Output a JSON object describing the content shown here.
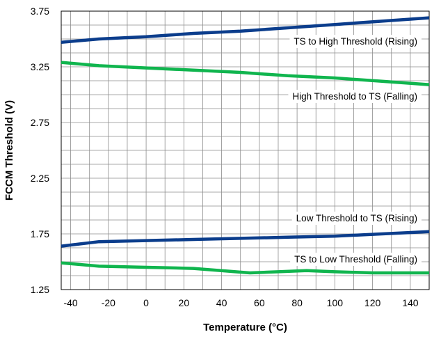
{
  "chart_data": {
    "type": "line",
    "title": "",
    "xlabel": "Temperature (°C)",
    "ylabel": "FCCM Threshold (V)",
    "xlim": [
      -45,
      150
    ],
    "ylim": [
      1.25,
      3.75
    ],
    "x_ticks": [
      -40,
      -20,
      0,
      20,
      40,
      60,
      80,
      100,
      120,
      140
    ],
    "y_ticks": [
      "1.25",
      "1.75",
      "2.25",
      "2.75",
      "3.25",
      "3.75"
    ],
    "grid": true,
    "legend": "none (series labeled inline on plot)",
    "series": [
      {
        "name": "TS to High Threshold (Rising)",
        "color": "#0b3d8c",
        "x": [
          -45,
          -25,
          0,
          25,
          50,
          75,
          100,
          125,
          150
        ],
        "y": [
          3.47,
          3.5,
          3.52,
          3.55,
          3.57,
          3.6,
          3.63,
          3.66,
          3.69
        ]
      },
      {
        "name": "High Threshold to TS (Falling)",
        "color": "#10b54e",
        "x": [
          -45,
          -25,
          0,
          25,
          50,
          75,
          100,
          125,
          150
        ],
        "y": [
          3.29,
          3.26,
          3.24,
          3.22,
          3.2,
          3.17,
          3.15,
          3.12,
          3.09
        ]
      },
      {
        "name": "Low Threshold to TS (Rising)",
        "color": "#0b3d8c",
        "x": [
          -45,
          -25,
          0,
          25,
          50,
          75,
          100,
          125,
          150
        ],
        "y": [
          1.64,
          1.68,
          1.69,
          1.7,
          1.71,
          1.72,
          1.73,
          1.75,
          1.77
        ]
      },
      {
        "name": "TS to Low Threshold (Falling)",
        "color": "#10b54e",
        "x": [
          -45,
          -25,
          0,
          25,
          55,
          85,
          100,
          120,
          150
        ],
        "y": [
          1.49,
          1.46,
          1.45,
          1.44,
          1.4,
          1.42,
          1.41,
          1.4,
          1.4
        ]
      }
    ]
  }
}
